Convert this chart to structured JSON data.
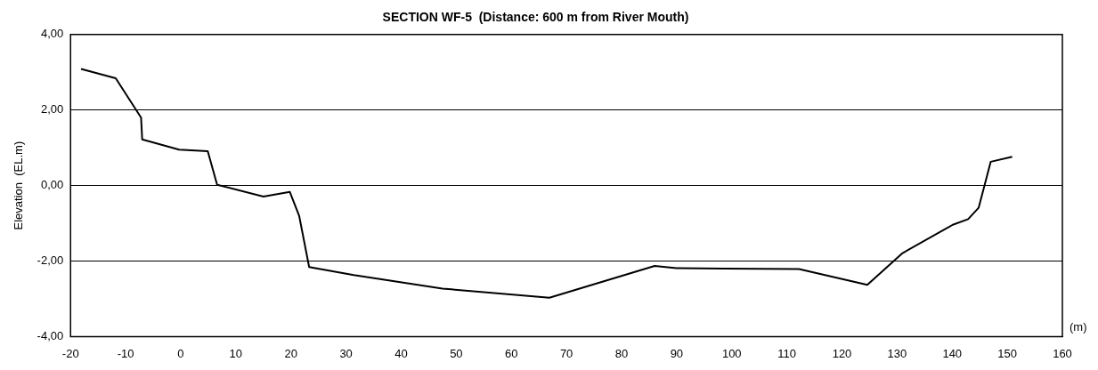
{
  "chart_data": {
    "type": "line",
    "title": "SECTION WF-5  (Distance: 600 m from River Mouth)",
    "ylabel": "Elevation  (EL.m)",
    "annotations": [
      "(m)"
    ],
    "x": [
      -18.1,
      -11.8,
      -7.2,
      -7.0,
      -0.3,
      4.9,
      6.6,
      15.0,
      19.8,
      21.5,
      23.3,
      31.4,
      47.5,
      66.9,
      86.0,
      90.0,
      98.7,
      112.2,
      124.6,
      131.0,
      140.1,
      142.9,
      144.8,
      147.0,
      150.9
    ],
    "series": [
      {
        "color": "#000000",
        "values": [
          3.09,
          2.84,
          1.8,
          1.22,
          0.95,
          0.91,
          0.02,
          -0.29,
          -0.17,
          -0.81,
          -2.16,
          -2.37,
          -2.73,
          -2.97,
          -2.13,
          -2.19,
          -2.2,
          -2.21,
          -2.63,
          -1.79,
          -1.04,
          -0.89,
          -0.59,
          0.63,
          0.76
        ]
      }
    ],
    "xlim": [
      -20,
      160
    ],
    "xticks": [
      -20,
      -10,
      0,
      10,
      20,
      30,
      40,
      50,
      60,
      70,
      80,
      90,
      100,
      110,
      120,
      130,
      140,
      150,
      160
    ],
    "ylim": [
      -4,
      4
    ],
    "yticks": [
      {
        "value": -4,
        "label": "-4,00"
      },
      {
        "value": -2,
        "label": "-2,00"
      },
      {
        "value": 0,
        "label": "0,00"
      },
      {
        "value": 2,
        "label": "2,00"
      },
      {
        "value": 4,
        "label": "4,00"
      }
    ],
    "grid": "y",
    "legend": false,
    "marker": "none",
    "line_style": "solid"
  }
}
